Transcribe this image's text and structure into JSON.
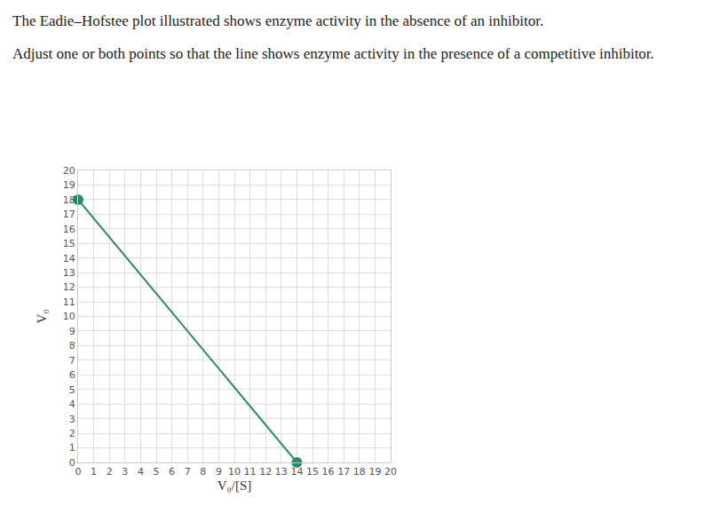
{
  "chart_data": {
    "type": "line",
    "title": "The Eadie–Hofstee plot illustrated shows enzyme activity in the absence of an inhibitor.",
    "subtitle": "Adjust one or both points so that the line shows enzyme activity in the presence of a competitive inhibitor.",
    "x_label": "V₀/[S]",
    "y_label": "V₀",
    "x": [
      0,
      14
    ],
    "series": [
      {
        "color": "#2a8a63",
        "values": [
          18,
          0
        ],
        "marker": "circle",
        "line_style": "solid"
      }
    ],
    "xlim": [
      0,
      20
    ],
    "xticks": [
      0,
      1,
      2,
      3,
      4,
      5,
      6,
      7,
      8,
      9,
      10,
      11,
      12,
      13,
      14,
      15,
      16,
      17,
      18,
      19,
      20
    ],
    "ylim": [
      0,
      20
    ],
    "yticks": [
      0,
      1,
      2,
      3,
      4,
      5,
      6,
      7,
      8,
      9,
      10,
      11,
      12,
      13,
      14,
      15,
      16,
      17,
      18,
      19,
      20
    ],
    "grid": true
  }
}
